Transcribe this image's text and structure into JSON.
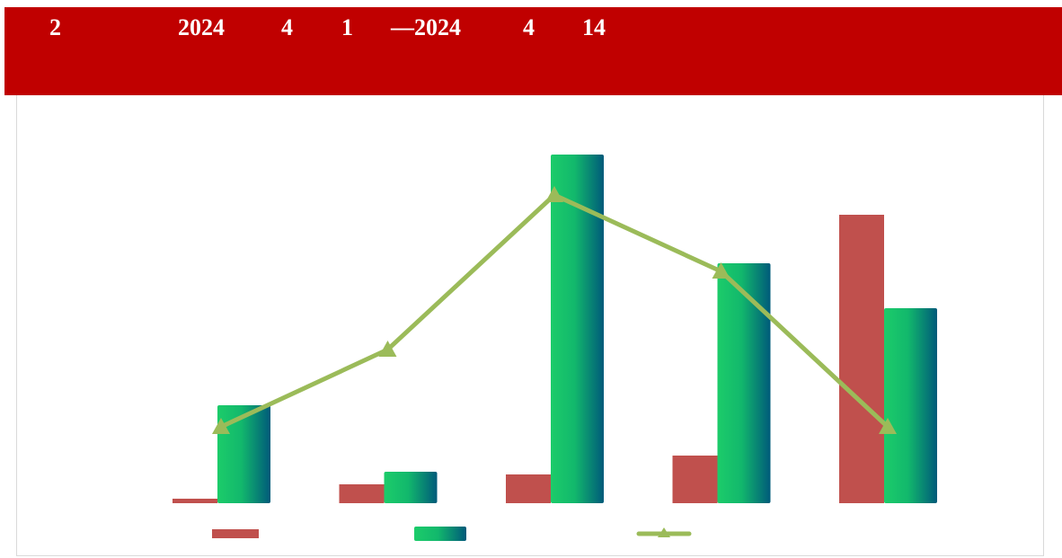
{
  "header": {
    "parts": [
      "2",
      "2024",
      "4",
      "1",
      "—2024",
      "4",
      "14"
    ]
  },
  "chart_data": {
    "type": "bar",
    "categories": [
      null,
      null,
      null,
      null,
      null
    ],
    "ylim": [
      0,
      400
    ],
    "series": [
      {
        "type": "bar",
        "color": "#c0504d",
        "values": [
          5,
          21,
          32,
          53,
          321
        ]
      },
      {
        "type": "bar",
        "color": "#1ccc6a",
        "values": [
          109,
          35,
          388,
          267,
          217
        ]
      },
      {
        "type": "line",
        "color": "#9bbb59",
        "values": [
          85,
          171,
          343,
          258,
          85
        ]
      }
    ]
  }
}
